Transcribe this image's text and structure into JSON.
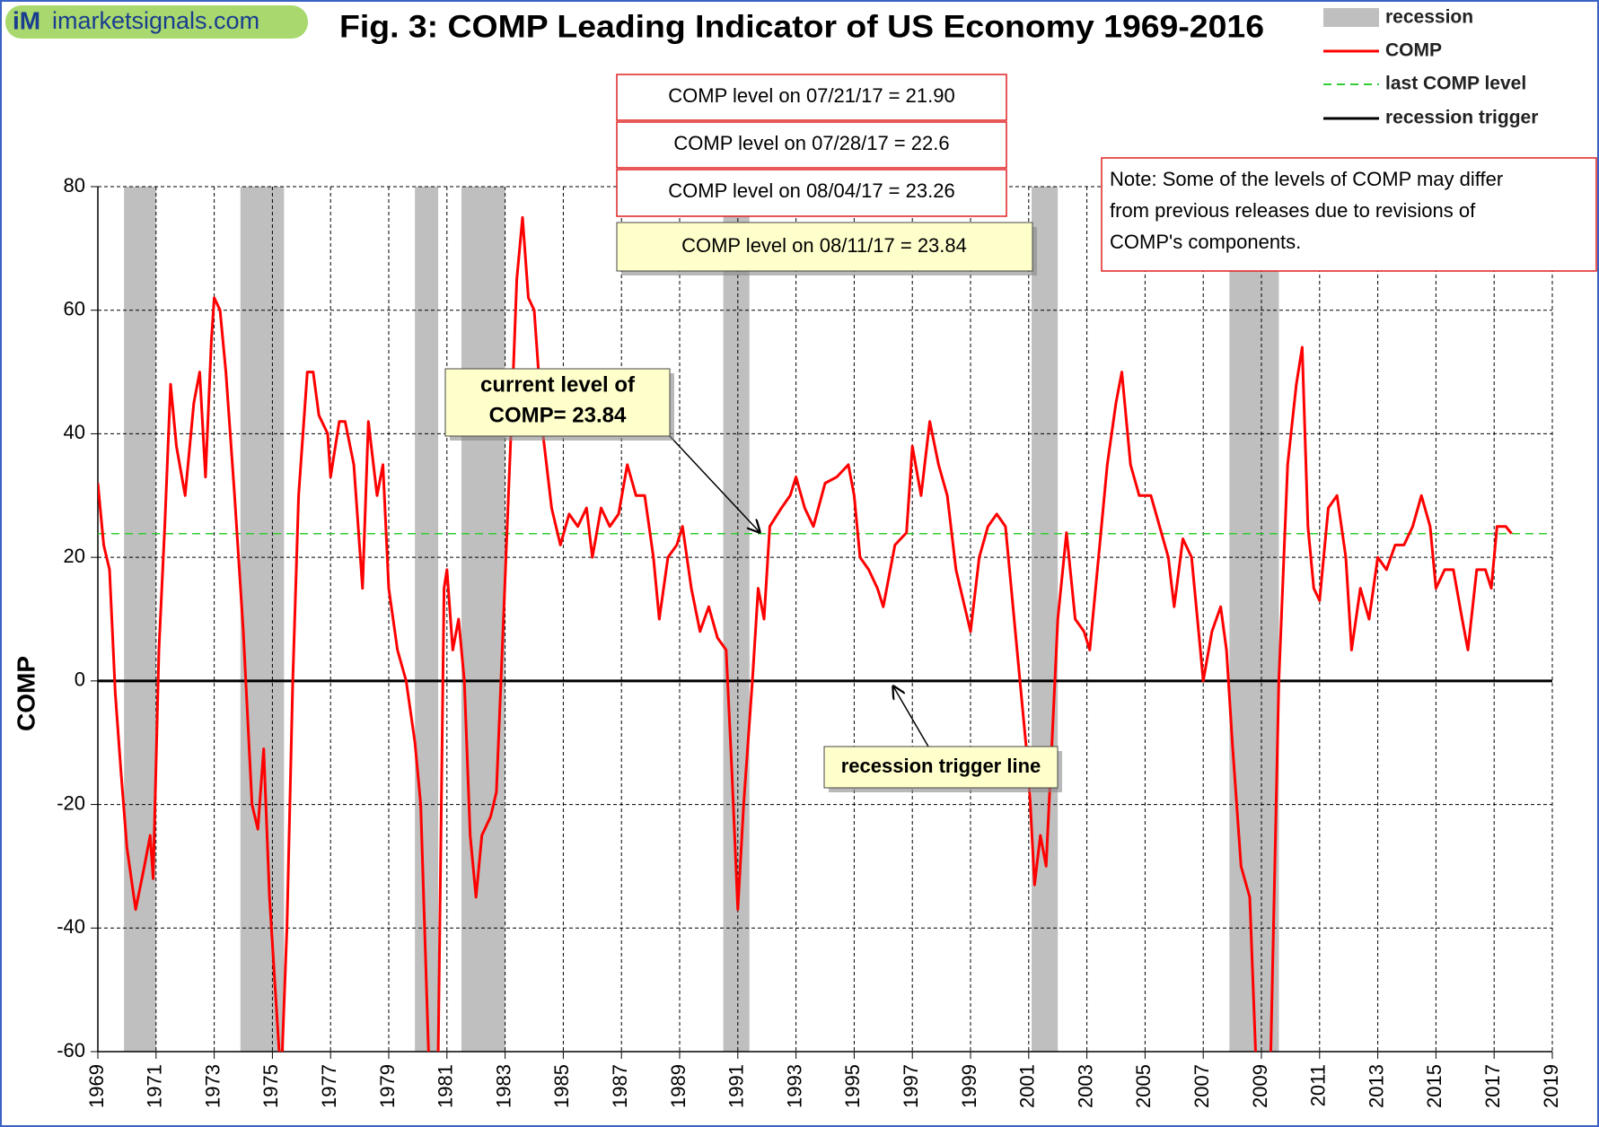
{
  "brand": {
    "logo": "iM",
    "site": "imarketsignals.com"
  },
  "chart_data": {
    "type": "line",
    "title": "Fig. 3:  COMP Leading Indicator of US Economy 1969-2016",
    "y_label": "COMP",
    "xlim": [
      1969,
      2019
    ],
    "xticks": [
      1969,
      1971,
      1973,
      1975,
      1977,
      1979,
      1981,
      1983,
      1985,
      1987,
      1989,
      1991,
      1993,
      1995,
      1997,
      1999,
      2001,
      2003,
      2005,
      2007,
      2009,
      2011,
      2013,
      2015,
      2017,
      2019
    ],
    "ylim": [
      -60,
      80
    ],
    "yticks": [
      -60,
      -40,
      -20,
      0,
      20,
      40,
      60,
      80
    ],
    "grid": true,
    "recession_label": "recession",
    "recession_color": "#bfbfbf",
    "recessions": [
      [
        1969.9,
        1971.0
      ],
      [
        1973.9,
        1975.4
      ],
      [
        1979.9,
        1980.7
      ],
      [
        1981.5,
        1983.0
      ],
      [
        1990.5,
        1991.4
      ],
      [
        2001.1,
        2002.0
      ],
      [
        2007.9,
        2009.6
      ]
    ],
    "x": [
      1969.0,
      1969.2,
      1969.4,
      1969.6,
      1969.8,
      1970.0,
      1970.3,
      1970.6,
      1970.8,
      1970.9,
      1971.1,
      1971.3,
      1971.5,
      1971.7,
      1972.0,
      1972.3,
      1972.5,
      1972.7,
      1972.9,
      1973.0,
      1973.2,
      1973.4,
      1973.7,
      1974.0,
      1974.3,
      1974.5,
      1974.7,
      1974.9,
      1975.1,
      1975.3,
      1975.5,
      1975.7,
      1975.9,
      1976.2,
      1976.4,
      1976.6,
      1976.9,
      1977.0,
      1977.3,
      1977.5,
      1977.8,
      1978.1,
      1978.3,
      1978.6,
      1978.8,
      1979.0,
      1979.3,
      1979.6,
      1979.9,
      1980.1,
      1980.4,
      1980.7,
      1980.9,
      1981.0,
      1981.2,
      1981.4,
      1981.6,
      1981.8,
      1982.0,
      1982.2,
      1982.5,
      1982.7,
      1982.9,
      1983.2,
      1983.4,
      1983.6,
      1983.8,
      1984.0,
      1984.3,
      1984.6,
      1984.9,
      1985.2,
      1985.5,
      1985.8,
      1986.0,
      1986.3,
      1986.6,
      1986.9,
      1987.2,
      1987.5,
      1987.8,
      1988.1,
      1988.3,
      1988.6,
      1988.9,
      1989.1,
      1989.4,
      1989.7,
      1990.0,
      1990.3,
      1990.6,
      1990.8,
      1991.0,
      1991.2,
      1991.5,
      1991.7,
      1991.9,
      1992.1,
      1992.5,
      1992.8,
      1993.0,
      1993.3,
      1993.6,
      1994.0,
      1994.4,
      1994.8,
      1995.0,
      1995.2,
      1995.5,
      1995.8,
      1996.0,
      1996.4,
      1996.8,
      1997.0,
      1997.3,
      1997.6,
      1997.9,
      1998.2,
      1998.5,
      1998.8,
      1999.0,
      1999.3,
      1999.6,
      1999.9,
      2000.2,
      2000.5,
      2000.8,
      2001.0,
      2001.2,
      2001.4,
      2001.6,
      2001.8,
      2002.0,
      2002.3,
      2002.6,
      2002.9,
      2003.1,
      2003.4,
      2003.7,
      2004.0,
      2004.2,
      2004.5,
      2004.8,
      2005.2,
      2005.5,
      2005.8,
      2006.0,
      2006.3,
      2006.6,
      2006.9,
      2007.0,
      2007.3,
      2007.6,
      2007.8,
      2008.0,
      2008.3,
      2008.6,
      2008.8,
      2009.0,
      2009.3,
      2009.6,
      2009.9,
      2010.2,
      2010.4,
      2010.6,
      2010.8,
      2011.0,
      2011.3,
      2011.6,
      2011.9,
      2012.1,
      2012.4,
      2012.7,
      2013.0,
      2013.3,
      2013.6,
      2013.9,
      2014.2,
      2014.5,
      2014.8,
      2015.0,
      2015.3,
      2015.6,
      2015.9,
      2016.1,
      2016.4,
      2016.7,
      2016.9,
      2017.1,
      2017.4,
      2017.6
    ],
    "series": [
      {
        "name": "COMP",
        "color": "#ff0000",
        "values": [
          32,
          22,
          18,
          -2,
          -15,
          -27,
          -37,
          -30,
          -25,
          -32,
          5,
          25,
          48,
          38,
          30,
          45,
          50,
          33,
          55,
          62,
          60,
          50,
          30,
          8,
          -20,
          -24,
          -11,
          -35,
          -50,
          -65,
          -40,
          0,
          30,
          50,
          50,
          43,
          40,
          33,
          42,
          42,
          35,
          15,
          42,
          30,
          35,
          15,
          5,
          0,
          -10,
          -20,
          -65,
          -60,
          15,
          18,
          5,
          10,
          0,
          -25,
          -35,
          -25,
          -22,
          -18,
          5,
          40,
          65,
          75,
          62,
          60,
          40,
          28,
          22,
          27,
          25,
          28,
          20,
          28,
          25,
          27,
          35,
          30,
          30,
          20,
          10,
          20,
          22,
          25,
          15,
          8,
          12,
          7,
          5,
          -15,
          -37,
          -20,
          0,
          15,
          10,
          25,
          28,
          30,
          33,
          28,
          25,
          32,
          33,
          35,
          30,
          20,
          18,
          15,
          12,
          22,
          24,
          38,
          30,
          42,
          35,
          30,
          18,
          12,
          8,
          20,
          25,
          27,
          25,
          10,
          -5,
          -15,
          -33,
          -25,
          -30,
          -10,
          10,
          24,
          10,
          8,
          5,
          20,
          35,
          45,
          50,
          35,
          30,
          30,
          25,
          20,
          12,
          23,
          20,
          5,
          0,
          8,
          12,
          5,
          -10,
          -30,
          -35,
          -60,
          -65,
          -65,
          0,
          35,
          48,
          54,
          25,
          15,
          13,
          28,
          30,
          20,
          5,
          15,
          10,
          20,
          18,
          22,
          22,
          25,
          30,
          25,
          15,
          18,
          18,
          10,
          5,
          18,
          18,
          15,
          25,
          25,
          23.84
        ]
      }
    ],
    "reference_lines": [
      {
        "name": "last COMP level",
        "value": 23.84,
        "color": "#33cc33",
        "dashed": true
      },
      {
        "name": "recession trigger",
        "value": 0,
        "color": "#000000",
        "dashed": false
      }
    ],
    "level_boxes": [
      "COMP level on 07/21/17 = 21.90",
      "COMP level on 07/28/17 = 22.6",
      "COMP level on 08/04/17 = 23.26",
      "COMP level on 08/11/17 = 23.84"
    ],
    "note": [
      "Note: Some of the levels of COMP may differ",
      "from previous releases due to revisions of",
      "COMP's components."
    ],
    "current_callout": [
      "current level of",
      "COMP=  23.84"
    ],
    "trigger_callout": "recession trigger line"
  }
}
